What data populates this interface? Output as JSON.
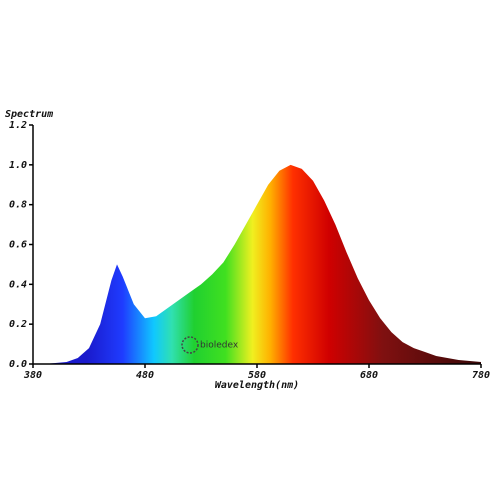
{
  "chart_data": {
    "type": "area",
    "y_label": "Spectrum",
    "x_label": "Wavelength(nm)",
    "annotation": "bioledex",
    "x": [
      380,
      390,
      400,
      410,
      420,
      430,
      440,
      450,
      455,
      460,
      470,
      480,
      490,
      500,
      510,
      520,
      530,
      540,
      550,
      560,
      570,
      580,
      590,
      600,
      610,
      620,
      630,
      640,
      650,
      660,
      670,
      680,
      690,
      700,
      710,
      720,
      730,
      740,
      750,
      760,
      770,
      780
    ],
    "values": [
      0,
      0,
      0.005,
      0.01,
      0.03,
      0.08,
      0.2,
      0.42,
      0.5,
      0.44,
      0.3,
      0.23,
      0.24,
      0.28,
      0.32,
      0.36,
      0.4,
      0.45,
      0.51,
      0.6,
      0.7,
      0.8,
      0.9,
      0.97,
      1.0,
      0.98,
      0.92,
      0.82,
      0.7,
      0.56,
      0.43,
      0.32,
      0.23,
      0.16,
      0.11,
      0.08,
      0.06,
      0.04,
      0.03,
      0.02,
      0.015,
      0.01
    ],
    "xlim": [
      380,
      780
    ],
    "xticks": [
      380,
      480,
      580,
      680,
      780
    ],
    "ylim": [
      0,
      1.2
    ],
    "yticks": [
      {
        "value": 0,
        "label": "0.0"
      },
      0.2,
      0.4,
      0.6,
      0.8,
      {
        "value": 1,
        "label": "1.0"
      },
      1.2
    ]
  }
}
